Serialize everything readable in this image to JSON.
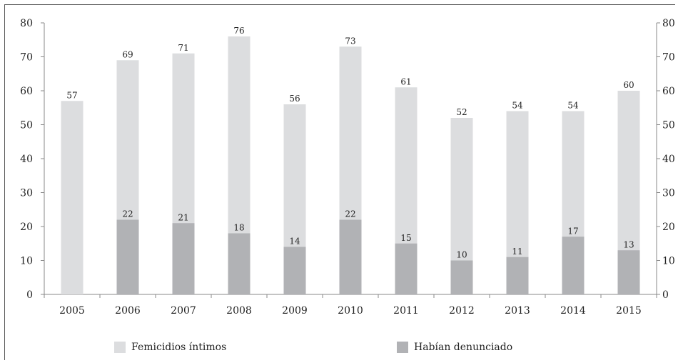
{
  "chart_data": {
    "type": "bar",
    "categories": [
      "2005",
      "2006",
      "2007",
      "2008",
      "2009",
      "2010",
      "2011",
      "2012",
      "2013",
      "2014",
      "2015"
    ],
    "series": [
      {
        "name": "Femicidios íntimos",
        "values": [
          57,
          69,
          71,
          76,
          56,
          73,
          61,
          52,
          54,
          54,
          60
        ],
        "color": "#dcdddf"
      },
      {
        "name": "Habían denunciado",
        "values": [
          null,
          22,
          21,
          18,
          14,
          22,
          15,
          10,
          11,
          17,
          13
        ],
        "color": "#b1b2b5"
      }
    ],
    "ylim": [
      0,
      80
    ],
    "yticks": [
      0,
      10,
      20,
      30,
      40,
      50,
      60,
      70,
      80
    ],
    "secondary_y_axis": true,
    "grid": false,
    "legend_position": "bottom",
    "xlabel": "",
    "ylabel": ""
  }
}
